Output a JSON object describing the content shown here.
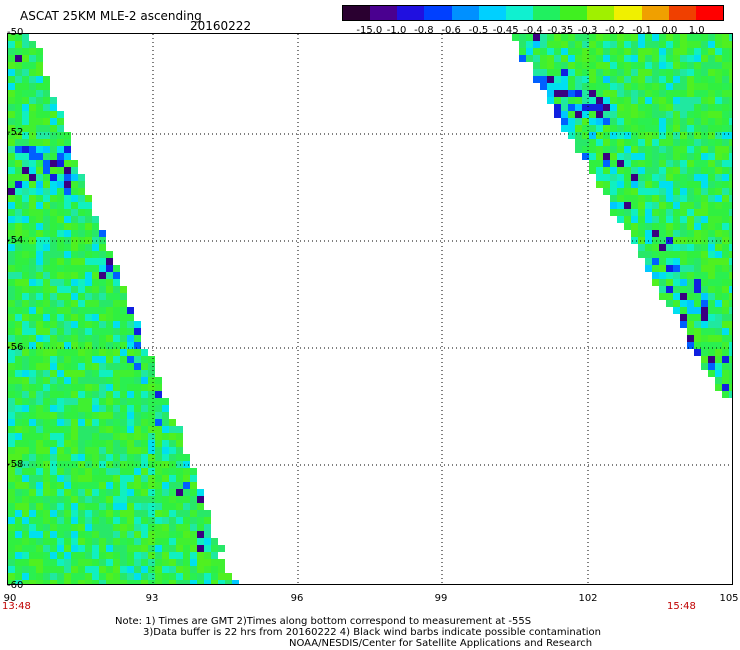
{
  "title": "ASCAT 25KM MLE-2 ascending",
  "date": "20160222",
  "colorbar": {
    "labels": [
      "-15.0",
      "-1.0",
      "-0.8",
      "-0.6",
      "-0.5",
      "-0.45",
      "-0.4",
      "-0.35",
      "-0.3",
      "-0.2",
      "-0.1",
      "0.0",
      "1.0"
    ],
    "colors": [
      "#2a0030",
      "#4a0090",
      "#2010e0",
      "#0040ff",
      "#0090ff",
      "#00d0ff",
      "#10f0d0",
      "#20f060",
      "#40f020",
      "#a0f000",
      "#f0f000",
      "#f0a000",
      "#f04000",
      "#ff0000"
    ]
  },
  "map": {
    "lat_labels": [
      "-50",
      "-52",
      "-54",
      "-56",
      "-58",
      "-60"
    ],
    "lon_labels": [
      "90",
      "93",
      "96",
      "99",
      "102",
      "105"
    ],
    "times": [
      "13:48",
      "15:48"
    ]
  },
  "notes": [
    "Note: 1) Times are GMT 2)Times along bottom correspond to measurement at -55S",
    "3)Data buffer is 22 hrs from 20160222 4) Black wind barbs indicate possible contamination",
    "NOAA/NESDIS/Center for Satellite Applications and Research"
  ]
}
